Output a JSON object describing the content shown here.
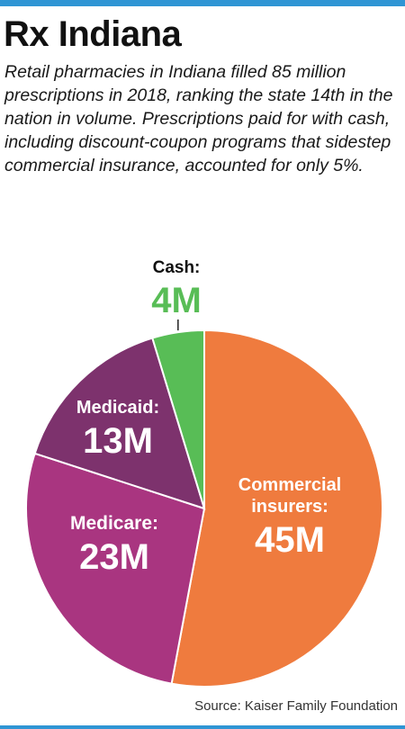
{
  "header": {
    "title": "Rx Indiana",
    "subtitle": "Retail pharmacies in Indiana filled 85 million prescriptions in 2018, ranking the state 14th in the nation in volume. Prescriptions paid for with cash, including discount-coupon programs that sidestep commercial insurance, accounted for only 5%."
  },
  "chart_data": {
    "type": "pie",
    "title": "",
    "slices": [
      {
        "name": "Commercial insurers:",
        "value": 45,
        "label": "45M",
        "color": "#ef7b3e"
      },
      {
        "name": "Medicare:",
        "value": 23,
        "label": "23M",
        "color": "#a93580"
      },
      {
        "name": "Medicaid:",
        "value": 13,
        "label": "13M",
        "color": "#7d326d"
      },
      {
        "name": "Cash:",
        "value": 4,
        "label": "4M",
        "color": "#58bd56"
      }
    ],
    "start": "12 o'clock",
    "direction": "clockwise"
  },
  "footer": {
    "source": "Source: Kaiser Family Foundation"
  },
  "colors": {
    "accent_rule": "#2f95d4",
    "slice_border": "#ffffff"
  }
}
